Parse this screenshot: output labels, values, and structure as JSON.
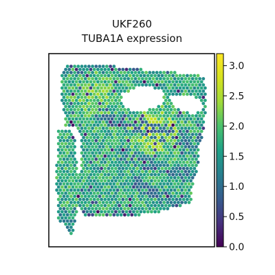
{
  "chart_data": {
    "type": "scatter",
    "subtype": "spatial-hex-spot-map",
    "title": "UKF260",
    "subtitle": "TUBA1A expression",
    "xlabel": "",
    "ylabel": "",
    "colormap": "viridis",
    "colorbar": {
      "range": [
        0.0,
        3.2
      ],
      "ticks": [
        0.0,
        0.5,
        1.0,
        1.5,
        2.0,
        2.5,
        3.0
      ],
      "tick_labels": [
        "0.0",
        "0.5",
        "1.0",
        "1.5",
        "2.0",
        "2.5",
        "3.0"
      ]
    },
    "value_summary": {
      "typical_expression": 2.0,
      "high_expression_regions": 2.8,
      "low_expression_regions": 0.5
    },
    "axes_ticks_shown": false,
    "grid": false
  }
}
